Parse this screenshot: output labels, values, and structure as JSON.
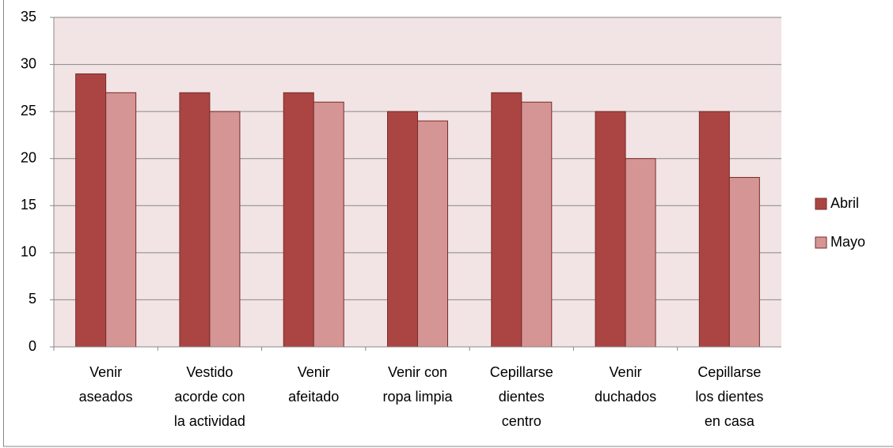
{
  "chart_data": {
    "type": "bar",
    "categories": [
      "Venir aseados",
      "Vestido acorde con la actividad",
      "Venir afeitado",
      "Venir con ropa limpia",
      "Cepillarse dientes centro",
      "Venir duchados",
      "Cepillarse los dientes en casa"
    ],
    "series": [
      {
        "name": "Abril",
        "color": "#ab4543",
        "values": [
          29,
          27,
          27,
          25,
          27,
          25,
          25
        ]
      },
      {
        "name": "Mayo",
        "color": "#d49594",
        "values": [
          27,
          25,
          26,
          24,
          26,
          20,
          18
        ]
      }
    ],
    "ylim": [
      0,
      35
    ],
    "yticks": [
      0,
      5,
      10,
      15,
      20,
      25,
      30,
      35
    ],
    "grid": true,
    "legend": "right"
  }
}
